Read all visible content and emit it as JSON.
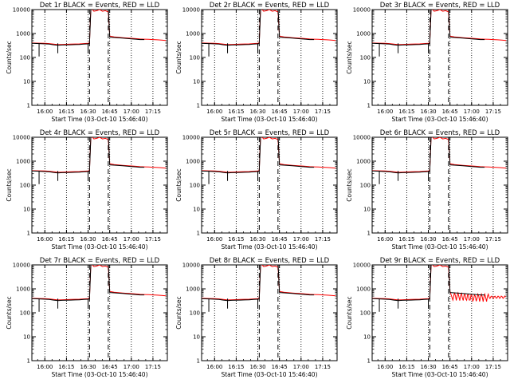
{
  "chart_data": {
    "type": "line",
    "yscale": "log",
    "ylabel": "Counts/sec",
    "xlabel": "Start Time (03-Oct-10 15:46:40)",
    "xlim": [
      "15:51",
      "17:25"
    ],
    "ylim": [
      1,
      10000
    ],
    "y_ticks": [
      "1",
      "10",
      "100",
      "1000",
      "10000"
    ],
    "x_ticks": [
      "16:00",
      "16:15",
      "16:30",
      "16:45",
      "17:00",
      "17:15"
    ],
    "colors": {
      "events": "#000000",
      "lld": "#ff0000"
    },
    "vertical_lines": {
      "dotted": [
        "16:00",
        "16:15",
        "16:30",
        "16:45",
        "17:00",
        "17:15"
      ],
      "dashed": [
        "16:31",
        "16:44"
      ]
    },
    "series_template": {
      "events": {
        "x": [
          "15:51",
          "15:56",
          "16:00",
          "16:03",
          "16:06",
          "16:09",
          "16:12",
          "16:15",
          "16:18",
          "16:21",
          "16:24",
          "16:27",
          "16:30",
          "16:31",
          "16:32",
          "16:33",
          "16:39",
          "16:43",
          "16:44",
          "16:45",
          "16:48",
          "16:51",
          "16:54",
          "16:57",
          "17:00",
          "17:03",
          "17:06",
          "17:09"
        ],
        "y": [
          390,
          380,
          370,
          360,
          340,
          320,
          330,
          335,
          340,
          345,
          350,
          360,
          370,
          380,
          13000,
          13000,
          13000,
          13000,
          13000,
          700,
          680,
          660,
          640,
          620,
          600,
          580,
          560,
          560
        ]
      },
      "lld": {
        "x": [
          "15:51",
          "15:56",
          "16:00",
          "16:03",
          "16:06",
          "16:09",
          "16:12",
          "16:15",
          "16:18",
          "16:21",
          "16:24",
          "16:27",
          "16:30",
          "16:31",
          "16:32",
          "16:33",
          "16:34",
          "16:36",
          "16:38",
          "16:40",
          "16:42",
          "16:44",
          "16:45",
          "16:48",
          "16:51",
          "16:54",
          "16:57",
          "17:00",
          "17:03",
          "17:06",
          "17:09",
          "17:12",
          "17:15",
          "17:18",
          "17:21",
          "17:24"
        ],
        "y": [
          400,
          395,
          390,
          380,
          360,
          345,
          350,
          355,
          360,
          365,
          370,
          380,
          390,
          400,
          13000,
          10000,
          8500,
          9000,
          10000,
          8500,
          9000,
          8000,
          780,
          720,
          690,
          670,
          650,
          630,
          610,
          590,
          580,
          570,
          560,
          545,
          530,
          510
        ]
      }
    },
    "charts": [
      {
        "title": "Det 1r BLACK = Events, RED = LLD"
      },
      {
        "title": "Det 2r BLACK = Events, RED = LLD"
      },
      {
        "title": "Det 3r BLACK = Events, RED = LLD"
      },
      {
        "title": "Det 4r BLACK = Events, RED = LLD"
      },
      {
        "title": "Det 5r BLACK = Events, RED = LLD"
      },
      {
        "title": "Det 6r BLACK = Events, RED = LLD"
      },
      {
        "title": "Det 7r BLACK = Events, RED = LLD"
      },
      {
        "title": "Det 8r BLACK = Events, RED = LLD"
      },
      {
        "title": "Det 9r BLACK = Events, RED = LLD",
        "noisy_tail": true
      }
    ]
  }
}
